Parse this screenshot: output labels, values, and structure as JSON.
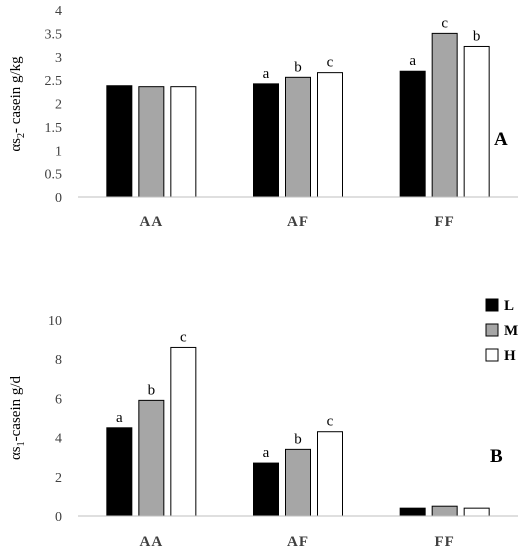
{
  "chart_data": [
    {
      "type": "bar",
      "panel_label": "A",
      "ylabel": {
        "prefix": "αs",
        "sub": "2",
        "suffix": "- casein g/kg"
      },
      "ylim": [
        0,
        4
      ],
      "yticks": [
        "0",
        "0.5",
        "1",
        "1.5",
        "2",
        "2.5",
        "3",
        "3.5",
        "4"
      ],
      "categories": [
        "AA",
        "AF",
        "FF"
      ],
      "series": [
        {
          "name": "L",
          "values": [
            2.38,
            2.42,
            2.69
          ],
          "labels": [
            "",
            "a",
            "a"
          ]
        },
        {
          "name": "M",
          "values": [
            2.36,
            2.56,
            3.5
          ],
          "labels": [
            "",
            "b",
            "c"
          ]
        },
        {
          "name": "H",
          "values": [
            2.36,
            2.66,
            3.22
          ],
          "labels": [
            "",
            "c",
            "b"
          ]
        }
      ],
      "grid": false
    },
    {
      "type": "bar",
      "panel_label": "B",
      "ylabel": {
        "prefix": "αs",
        "sub": "1",
        "suffix": "-casein g/d"
      },
      "ylim": [
        0,
        10
      ],
      "yticks": [
        "0",
        "2",
        "4",
        "6",
        "8",
        "10"
      ],
      "categories": [
        "AA",
        "AF",
        "FF"
      ],
      "series": [
        {
          "name": "L",
          "values": [
            4.5,
            2.7,
            0.4
          ],
          "labels": [
            "a",
            "a",
            ""
          ]
        },
        {
          "name": "M",
          "values": [
            5.9,
            3.4,
            0.5
          ],
          "labels": [
            "b",
            "b",
            ""
          ]
        },
        {
          "name": "H",
          "values": [
            8.6,
            4.3,
            0.4
          ],
          "labels": [
            "c",
            "c",
            ""
          ]
        }
      ],
      "grid": false
    }
  ],
  "legend": {
    "placement": "right",
    "items": [
      {
        "name": "L",
        "color": "#000000"
      },
      {
        "name": "M",
        "color": "#a6a6a6"
      },
      {
        "name": "H",
        "color": "#ffffff"
      }
    ]
  },
  "colors": {
    "L": "#000000",
    "M": "#a6a6a6",
    "H": "#ffffff",
    "axis": "#bfbfbf"
  }
}
